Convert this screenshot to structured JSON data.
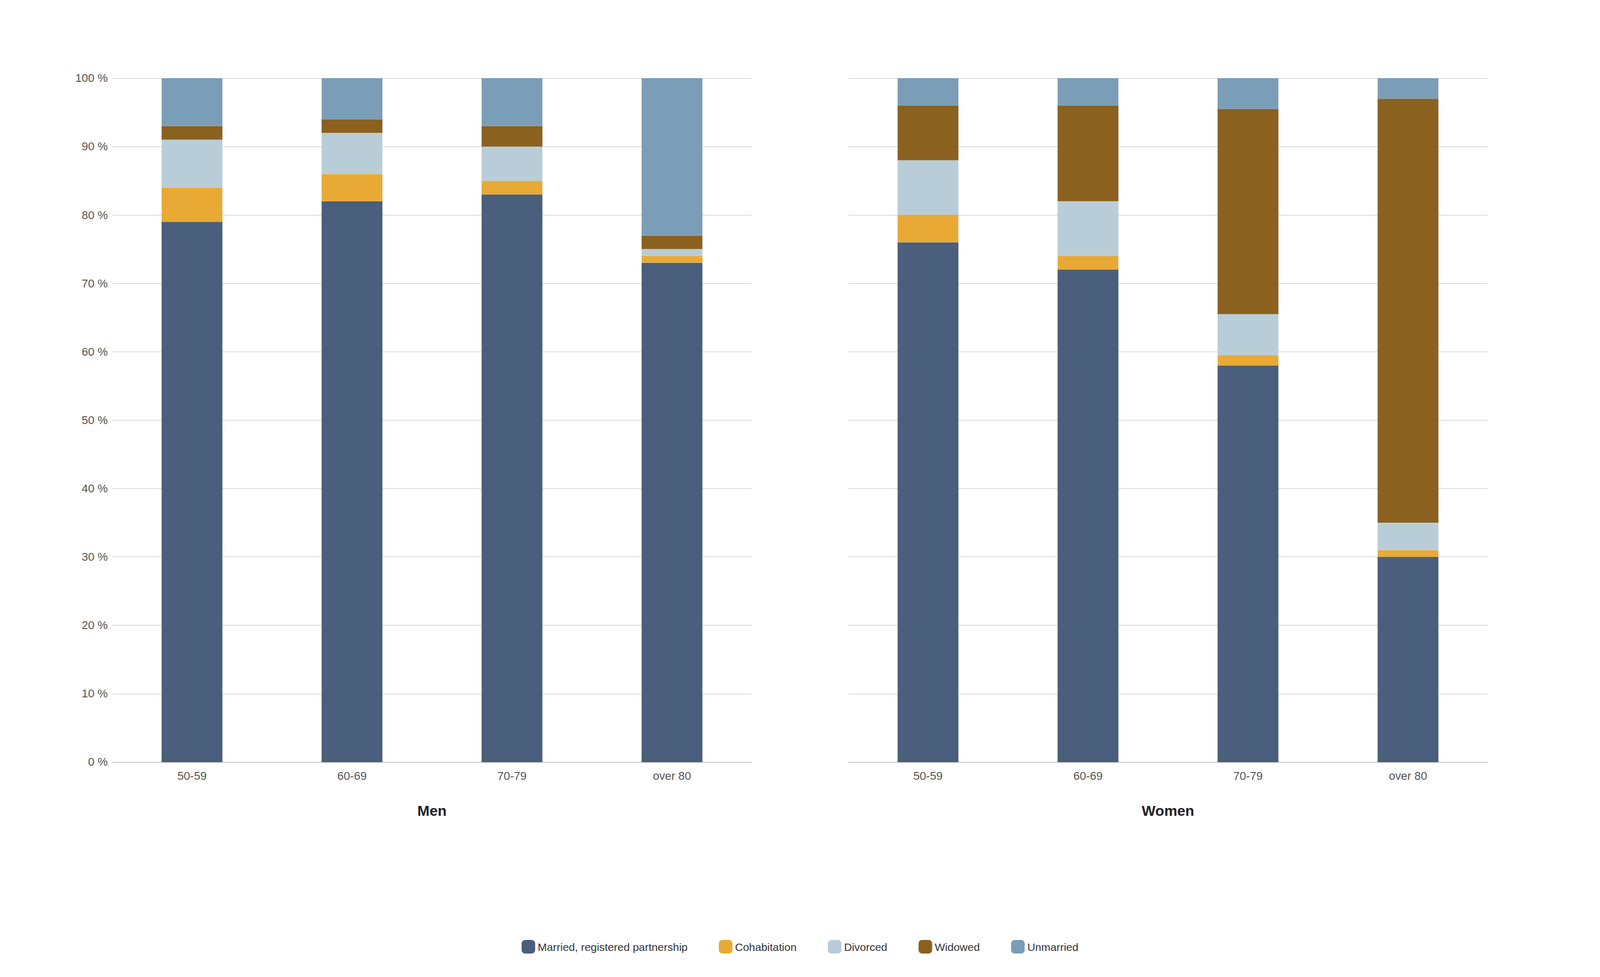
{
  "chart_data": [
    {
      "type": "bar",
      "stacked": true,
      "xlabel": "Men",
      "categories": [
        "50-59",
        "60-69",
        "70-79",
        "over 80"
      ],
      "series": [
        {
          "name": "Married, registered partnership",
          "color": "#4a5f7c",
          "values": [
            79,
            82,
            83,
            73
          ]
        },
        {
          "name": "Cohabitation",
          "color": "#e8aa35",
          "values": [
            5,
            4,
            2,
            1
          ]
        },
        {
          "name": "Divorced",
          "color": "#b8cdd8",
          "values": [
            7,
            6,
            5,
            1
          ]
        },
        {
          "name": "Widowed",
          "color": "#8b6120",
          "values": [
            2,
            2,
            3,
            2
          ]
        },
        {
          "name": "Unmarried",
          "color": "#7b9eb8",
          "values": [
            7,
            6,
            7,
            23
          ]
        }
      ],
      "ylim": [
        0,
        100
      ],
      "yticks": [
        {
          "value": 0,
          "label": "0 %"
        },
        {
          "value": 10,
          "label": "10 %"
        },
        {
          "value": 20,
          "label": "20 %"
        },
        {
          "value": 30,
          "label": "30 %"
        },
        {
          "value": 40,
          "label": "40 %"
        },
        {
          "value": 50,
          "label": "50 %"
        },
        {
          "value": 60,
          "label": "60 %"
        },
        {
          "value": 70,
          "label": "70 %"
        },
        {
          "value": 80,
          "label": "80 %"
        },
        {
          "value": 90,
          "label": "90 %"
        },
        {
          "value": 100,
          "label": "100 %"
        }
      ],
      "grid": true,
      "legend": "bottom"
    },
    {
      "type": "bar",
      "stacked": true,
      "xlabel": "Women",
      "categories": [
        "50-59",
        "60-69",
        "70-79",
        "over 80"
      ],
      "series": [
        {
          "name": "Married, registered partnership",
          "color": "#4a5f7c",
          "values": [
            76,
            72,
            58,
            30
          ]
        },
        {
          "name": "Cohabitation",
          "color": "#e8aa35",
          "values": [
            4,
            2,
            1.5,
            1
          ]
        },
        {
          "name": "Divorced",
          "color": "#b8cdd8",
          "values": [
            8,
            8,
            6,
            4
          ]
        },
        {
          "name": "Widowed",
          "color": "#8b6120",
          "values": [
            8,
            14,
            30,
            62
          ]
        },
        {
          "name": "Unmarried",
          "color": "#7b9eb8",
          "values": [
            4,
            4,
            4.5,
            3
          ]
        }
      ],
      "ylim": [
        0,
        100
      ],
      "yticks": [
        0,
        10,
        20,
        30,
        40,
        50,
        60,
        70,
        80,
        90,
        100
      ],
      "grid": true,
      "tick_labels": "x",
      "legend": "bottom"
    }
  ]
}
